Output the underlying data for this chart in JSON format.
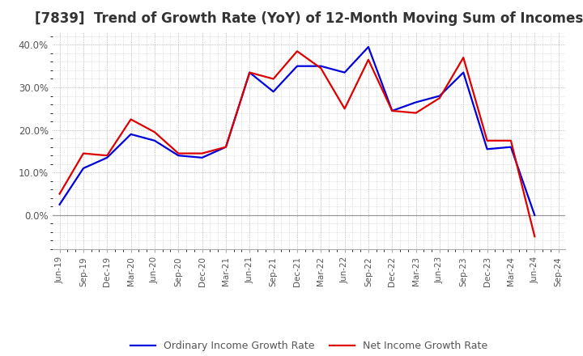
{
  "title": "[7839]  Trend of Growth Rate (YoY) of 12-Month Moving Sum of Incomes",
  "x_labels": [
    "Jun-19",
    "Sep-19",
    "Dec-19",
    "Mar-20",
    "Jun-20",
    "Sep-20",
    "Dec-20",
    "Mar-21",
    "Jun-21",
    "Sep-21",
    "Dec-21",
    "Mar-22",
    "Jun-22",
    "Sep-22",
    "Dec-22",
    "Mar-23",
    "Jun-23",
    "Sep-23",
    "Dec-23",
    "Mar-24",
    "Jun-24",
    "Sep-24"
  ],
  "ordinary_income": [
    2.5,
    11.0,
    13.5,
    19.0,
    17.5,
    14.0,
    13.5,
    16.0,
    33.5,
    29.0,
    35.0,
    35.0,
    33.5,
    39.5,
    24.5,
    26.5,
    28.0,
    33.5,
    15.5,
    16.0,
    0.0,
    null
  ],
  "net_income": [
    5.0,
    14.5,
    14.0,
    22.5,
    19.5,
    14.5,
    14.5,
    16.0,
    33.5,
    32.0,
    38.5,
    34.5,
    25.0,
    36.5,
    24.5,
    24.0,
    27.5,
    37.0,
    17.5,
    17.5,
    -5.0,
    null
  ],
  "ordinary_color": "#0000dd",
  "net_color": "#dd0000",
  "ylim": [
    -8,
    43
  ],
  "yticks": [
    0.0,
    10.0,
    20.0,
    30.0,
    40.0
  ],
  "background_color": "#ffffff",
  "plot_background": "#ffffff",
  "grid_color": "#bbbbbb",
  "title_fontsize": 12,
  "title_color": "#333333",
  "tick_label_color": "#555555",
  "legend_labels": [
    "Ordinary Income Growth Rate",
    "Net Income Growth Rate"
  ]
}
